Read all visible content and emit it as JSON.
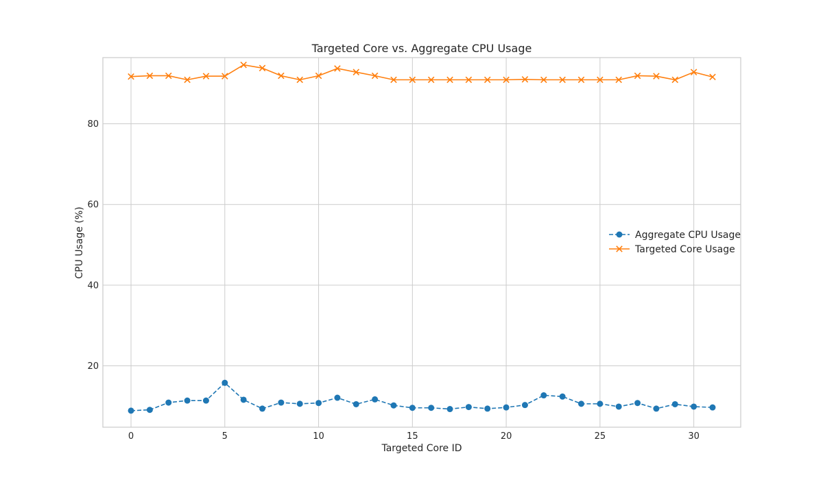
{
  "chart_data": {
    "type": "line",
    "title": "Targeted Core vs. Aggregate CPU Usage",
    "xlabel": "Targeted Core ID",
    "ylabel": "CPU Usage (%)",
    "x": [
      0,
      1,
      2,
      3,
      4,
      5,
      6,
      7,
      8,
      9,
      10,
      11,
      12,
      13,
      14,
      15,
      16,
      17,
      18,
      19,
      20,
      21,
      22,
      23,
      24,
      25,
      26,
      27,
      28,
      29,
      30,
      31
    ],
    "xlim": [
      -1.5,
      32.5
    ],
    "ylim": [
      4.8,
      96.4
    ],
    "xticks": [
      0,
      5,
      10,
      15,
      20,
      25,
      30
    ],
    "yticks": [
      20,
      40,
      60,
      80
    ],
    "grid": true,
    "legend_position": "center-right",
    "series": [
      {
        "name": "Aggregate CPU Usage",
        "color": "#1f77b4",
        "line_style": "dashed",
        "marker": "circle",
        "values": [
          8.9,
          9.1,
          10.9,
          11.4,
          11.4,
          15.8,
          11.6,
          9.4,
          10.9,
          10.6,
          10.8,
          12.1,
          10.5,
          11.7,
          10.2,
          9.6,
          9.6,
          9.3,
          9.8,
          9.4,
          9.7,
          10.3,
          12.7,
          12.4,
          10.6,
          10.6,
          9.9,
          10.8,
          9.4,
          10.5,
          9.9,
          9.7
        ]
      },
      {
        "name": "Targeted Core Usage",
        "color": "#ff7f0e",
        "line_style": "solid",
        "marker": "x",
        "values": [
          91.7,
          91.9,
          91.9,
          90.9,
          91.8,
          91.8,
          94.6,
          93.8,
          91.9,
          90.9,
          91.9,
          93.7,
          92.8,
          91.9,
          90.9,
          90.9,
          90.9,
          90.9,
          90.9,
          90.9,
          90.9,
          91.0,
          90.9,
          90.9,
          90.9,
          90.9,
          90.9,
          91.9,
          91.8,
          90.9,
          92.8,
          91.6
        ]
      }
    ]
  }
}
